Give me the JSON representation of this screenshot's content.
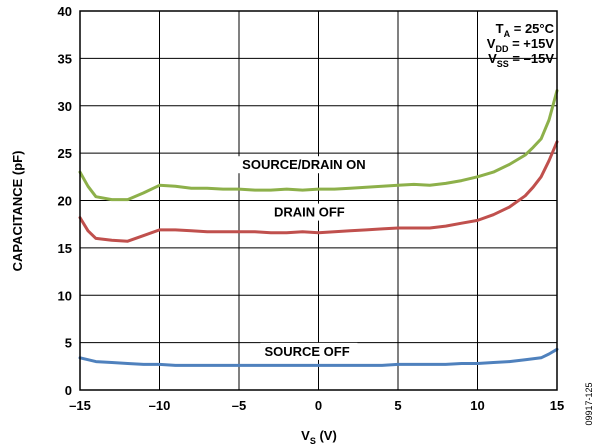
{
  "chart_data": {
    "type": "line",
    "title": "",
    "xlabel_main": "V",
    "xlabel_sub": "S",
    "xlabel_unit": " (V)",
    "ylabel": "CAPACITANCE (pF)",
    "xlim": [
      -15,
      15
    ],
    "ylim": [
      0,
      40
    ],
    "xticks": [
      -15,
      -10,
      -5,
      0,
      5,
      10,
      15
    ],
    "xtick_labels": [
      "–15",
      "–10",
      "–5",
      "0",
      "5",
      "10",
      "15"
    ],
    "yticks": [
      0,
      5,
      10,
      15,
      20,
      25,
      30,
      35,
      40
    ],
    "ytick_labels": [
      "0",
      "5",
      "10",
      "15",
      "20",
      "25",
      "30",
      "35",
      "40"
    ],
    "grid": true,
    "conditions": [
      {
        "main": "T",
        "sub": "A",
        "rest": " = 25°C"
      },
      {
        "main": "V",
        "sub": "DD",
        "rest": " = +15V"
      },
      {
        "main": "V",
        "sub": "SS",
        "rest": " = –15V"
      }
    ],
    "series": [
      {
        "name": "SOURCE/DRAIN ON",
        "color": "#8db04a",
        "x": [
          -15,
          -14.5,
          -14,
          -13,
          -12,
          -11,
          -10,
          -9,
          -8,
          -7,
          -6,
          -5,
          -4,
          -3,
          -2,
          -1,
          0,
          1,
          2,
          3,
          4,
          5,
          6,
          7,
          8,
          9,
          10,
          11,
          12,
          13,
          13.5,
          14,
          14.5,
          15
        ],
        "y": [
          23.0,
          21.5,
          20.4,
          20.1,
          20.1,
          20.8,
          21.6,
          21.5,
          21.3,
          21.3,
          21.2,
          21.2,
          21.1,
          21.1,
          21.2,
          21.1,
          21.2,
          21.2,
          21.3,
          21.4,
          21.5,
          21.6,
          21.7,
          21.6,
          21.8,
          22.1,
          22.5,
          23.0,
          23.8,
          24.8,
          25.6,
          26.5,
          28.5,
          31.6
        ]
      },
      {
        "name": "DRAIN OFF",
        "color": "#c0504d",
        "x": [
          -15,
          -14.5,
          -14,
          -13,
          -12,
          -11,
          -10,
          -9,
          -8,
          -7,
          -6,
          -5,
          -4,
          -3,
          -2,
          -1,
          0,
          1,
          2,
          3,
          4,
          5,
          6,
          7,
          8,
          9,
          10,
          11,
          12,
          13,
          13.5,
          14,
          14.5,
          15
        ],
        "y": [
          18.2,
          16.8,
          16.0,
          15.8,
          15.7,
          16.3,
          16.9,
          16.9,
          16.8,
          16.7,
          16.7,
          16.7,
          16.7,
          16.6,
          16.6,
          16.7,
          16.6,
          16.7,
          16.8,
          16.9,
          17.0,
          17.1,
          17.1,
          17.1,
          17.3,
          17.6,
          17.9,
          18.5,
          19.3,
          20.5,
          21.4,
          22.5,
          24.2,
          26.2
        ]
      },
      {
        "name": "SOURCE OFF",
        "color": "#4f81bd",
        "x": [
          -15,
          -14,
          -13,
          -12,
          -11,
          -10,
          -9,
          -8,
          -7,
          -6,
          -5,
          -4,
          -3,
          -2,
          -1,
          0,
          1,
          2,
          3,
          4,
          5,
          6,
          7,
          8,
          9,
          10,
          11,
          12,
          13,
          14,
          14.5,
          15
        ],
        "y": [
          3.4,
          3.0,
          2.9,
          2.8,
          2.7,
          2.7,
          2.6,
          2.6,
          2.6,
          2.6,
          2.6,
          2.6,
          2.6,
          2.6,
          2.6,
          2.6,
          2.6,
          2.6,
          2.6,
          2.6,
          2.7,
          2.7,
          2.7,
          2.7,
          2.8,
          2.8,
          2.9,
          3.0,
          3.2,
          3.4,
          3.8,
          4.3
        ]
      }
    ],
    "series_labels": [
      {
        "text": "SOURCE/DRAIN ON",
        "x": -4.8,
        "y": 23.3
      },
      {
        "text": "DRAIN OFF",
        "x": -2.8,
        "y": 18.3
      },
      {
        "text": "SOURCE OFF",
        "x": -3.4,
        "y": 3.6
      }
    ],
    "figure_id": "09917-125"
  }
}
